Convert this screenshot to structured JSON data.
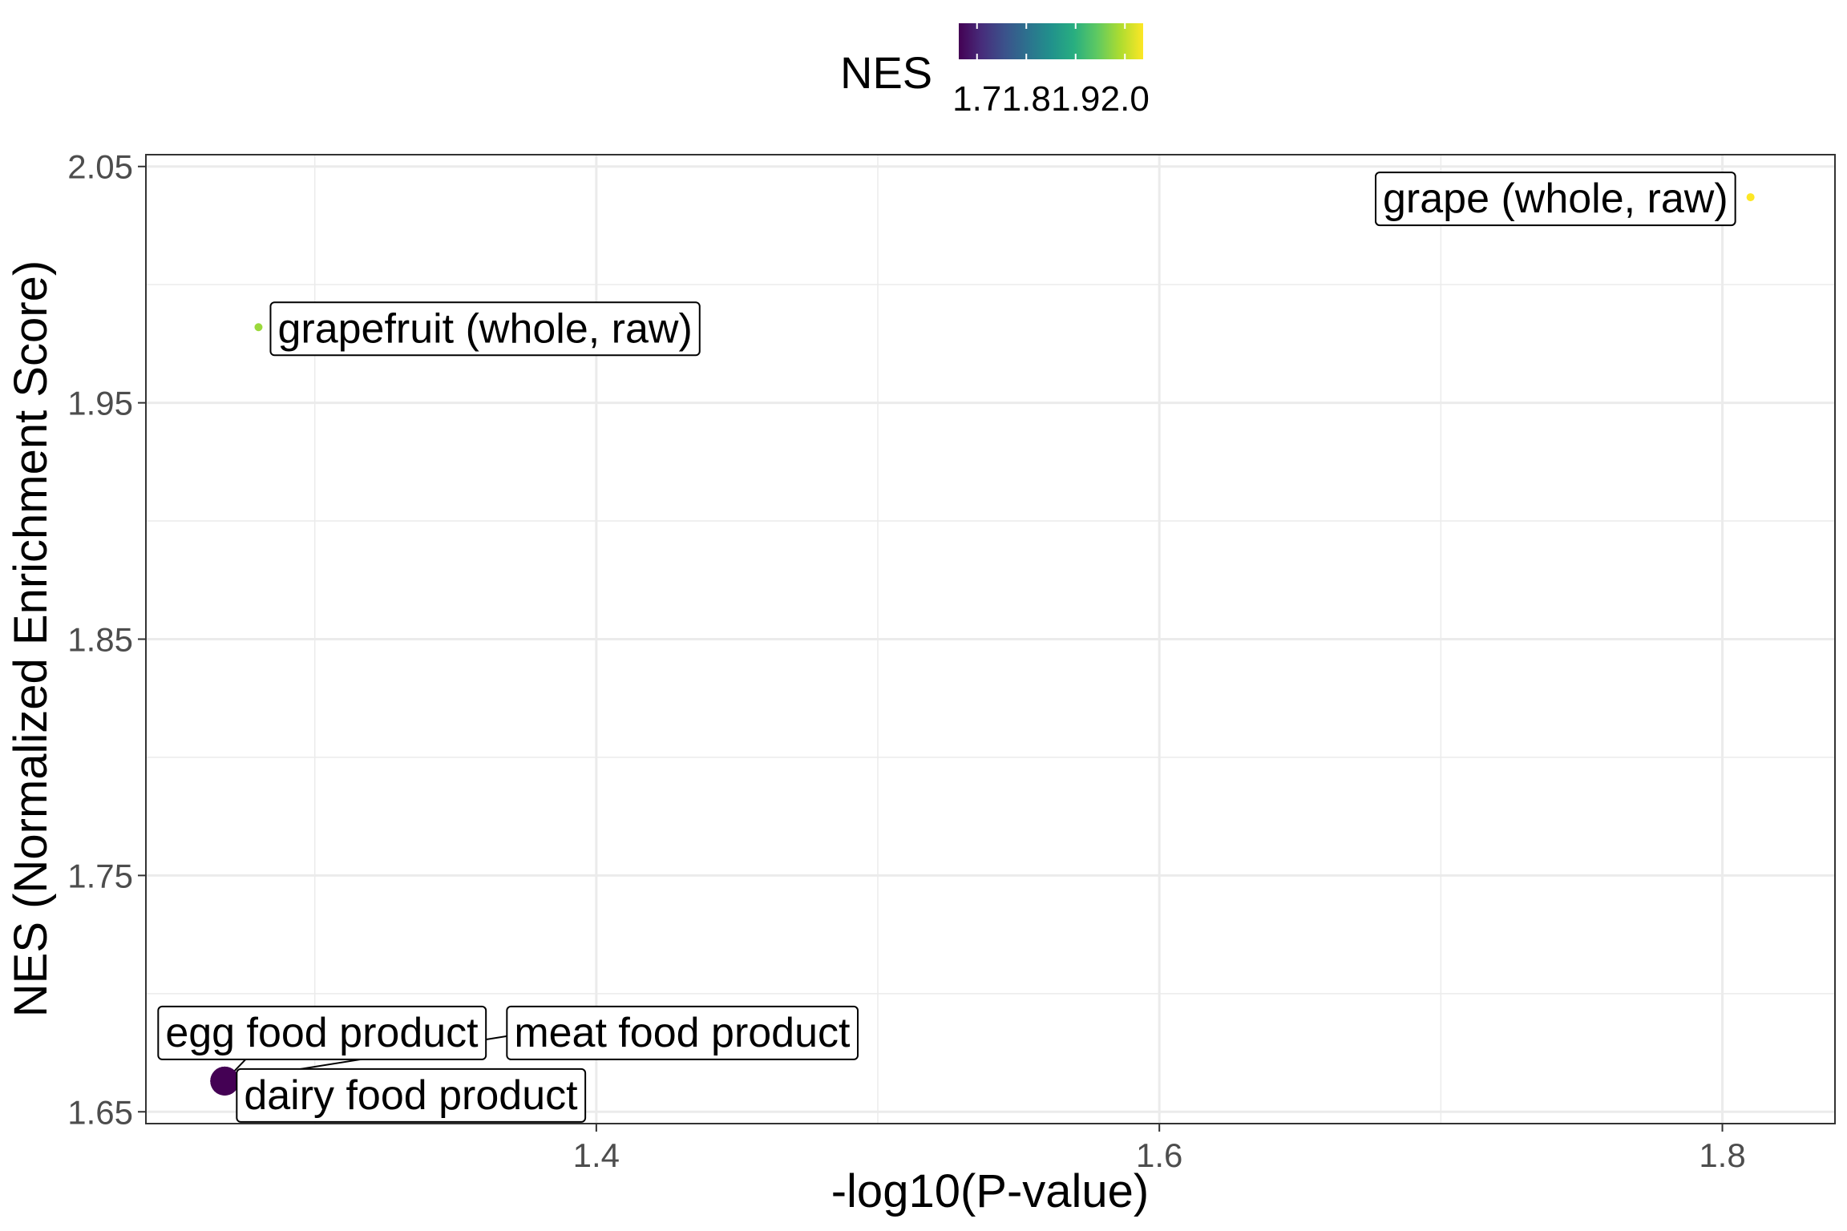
{
  "chart_data": {
    "type": "scatter",
    "title": "",
    "xlabel": "-log10(P-value)",
    "ylabel": "NES (Normalized Enrichment Score)",
    "xlim": [
      1.24,
      1.84
    ],
    "ylim": [
      1.645,
      2.055
    ],
    "x_ticks": [
      1.4,
      1.6,
      1.8
    ],
    "x_tick_labels": [
      "1.4",
      "1.6",
      "1.8"
    ],
    "y_ticks": [
      1.65,
      1.75,
      1.85,
      1.95,
      2.05
    ],
    "y_tick_labels": [
      "1.65",
      "1.75",
      "1.85",
      "1.95",
      "2.05"
    ],
    "grid": true,
    "legend": {
      "title": "NES",
      "placement": "top",
      "colormap": "viridis",
      "range": [
        1.663,
        2.037
      ],
      "ticks": [
        1.7,
        1.8,
        1.9,
        2.0
      ],
      "tick_labels": [
        "1.7",
        "1.8",
        "1.9",
        "2.0"
      ],
      "gradient_colors": [
        "#440154",
        "#472d7b",
        "#3b528b",
        "#2c728e",
        "#21918c",
        "#28ae80",
        "#5ec962",
        "#addc30",
        "#fde725"
      ]
    },
    "points": [
      {
        "label": "grape (whole, raw)",
        "x": 1.81,
        "y": 2.037,
        "nes": 2.037,
        "color": "#fde725",
        "size": "small"
      },
      {
        "label": "grapefruit (whole, raw)",
        "x": 1.28,
        "y": 1.982,
        "nes": 1.982,
        "color": "#9bd93c",
        "size": "small"
      },
      {
        "label": "egg food product",
        "x": 1.268,
        "y": 1.663,
        "nes": 1.663,
        "color": "#440154",
        "size": "large"
      },
      {
        "label": "meat food product",
        "x": 1.268,
        "y": 1.663,
        "nes": 1.663,
        "color": "#440154",
        "size": "large"
      },
      {
        "label": "dairy food product",
        "x": 1.268,
        "y": 1.663,
        "nes": 1.663,
        "color": "#440154",
        "size": "large"
      }
    ]
  }
}
